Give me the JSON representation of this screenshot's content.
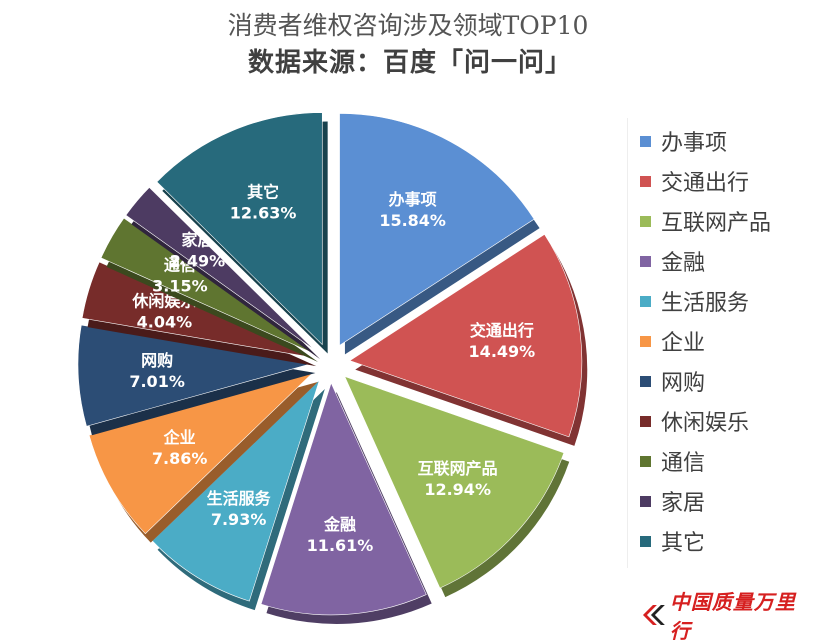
{
  "chart_data": {
    "type": "pie",
    "title": "消费者维权咨询涉及领域TOP10",
    "subtitle": "数据来源：百度「问一问」",
    "slices": [
      {
        "label": "办事项",
        "value": 15.84,
        "display": "15.84%",
        "color": "#5b8fd3"
      },
      {
        "label": "交通出行",
        "value": 14.49,
        "display": "14.49%",
        "color": "#d05352"
      },
      {
        "label": "互联网产品",
        "value": 12.94,
        "display": "12.94%",
        "color": "#9bbb59"
      },
      {
        "label": "金融",
        "value": 11.61,
        "display": "11.61%",
        "color": "#8064a2"
      },
      {
        "label": "生活服务",
        "value": 7.93,
        "display": "7.93%",
        "color": "#4bacc6"
      },
      {
        "label": "企业",
        "value": 7.86,
        "display": "7.86%",
        "color": "#f79646"
      },
      {
        "label": "网购",
        "value": 7.01,
        "display": "7.01%",
        "color": "#2c4d75"
      },
      {
        "label": "休闲娱乐",
        "value": 4.04,
        "display": "4.04%",
        "color": "#772c2a"
      },
      {
        "label": "通信",
        "value": 3.15,
        "display": "3.15%",
        "color": "#5f7530"
      },
      {
        "label": "家居",
        "value": 2.49,
        "display": "2.49%",
        "color": "#4d3b62"
      },
      {
        "label": "其它",
        "value": 12.63,
        "display": "12.63%",
        "color": "#276a7c"
      }
    ],
    "legend": {
      "position": "right"
    }
  },
  "brand": {
    "text": "中国质量万里行",
    "icon": "double-chevron-logo-icon",
    "color": "#d62020"
  }
}
